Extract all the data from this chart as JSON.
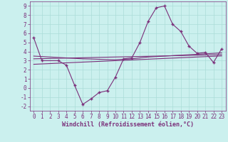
{
  "x_values": [
    0,
    1,
    2,
    3,
    4,
    5,
    6,
    7,
    8,
    9,
    10,
    11,
    12,
    13,
    14,
    15,
    16,
    17,
    18,
    19,
    20,
    21,
    22,
    23
  ],
  "main_line": [
    5.5,
    3.0,
    null,
    3.0,
    2.5,
    0.3,
    -1.8,
    -1.2,
    -0.5,
    -0.3,
    1.2,
    3.2,
    3.3,
    5.0,
    7.3,
    8.8,
    9.0,
    7.0,
    6.2,
    4.6,
    3.8,
    3.9,
    2.8,
    4.3
  ],
  "reg_lines": [
    [
      3.5,
      3.45,
      3.4,
      3.35,
      3.3,
      3.25,
      3.2,
      3.18,
      3.15,
      3.12,
      3.1,
      3.15,
      3.2,
      3.3,
      3.4,
      3.45,
      3.5,
      3.55,
      3.6,
      3.65,
      3.7,
      3.75,
      3.8,
      3.85
    ],
    [
      3.2,
      3.22,
      3.24,
      3.26,
      3.28,
      3.3,
      3.32,
      3.34,
      3.36,
      3.38,
      3.4,
      3.42,
      3.44,
      3.46,
      3.48,
      3.5,
      3.52,
      3.54,
      3.56,
      3.58,
      3.6,
      3.62,
      3.64,
      3.66
    ],
    [
      2.6,
      2.64,
      2.68,
      2.72,
      2.76,
      2.8,
      2.84,
      2.88,
      2.92,
      2.96,
      3.0,
      3.04,
      3.08,
      3.12,
      3.16,
      3.2,
      3.24,
      3.28,
      3.32,
      3.36,
      3.4,
      3.44,
      3.48,
      3.52
    ]
  ],
  "line_color": "#7B2F7A",
  "bg_color": "#CBF0EE",
  "grid_color": "#AADDD8",
  "xlabel": "Windchill (Refroidissement éolien,°C)",
  "xlim": [
    -0.5,
    23.5
  ],
  "ylim": [
    -2.5,
    9.5
  ],
  "yticks": [
    -2,
    -1,
    0,
    1,
    2,
    3,
    4,
    5,
    6,
    7,
    8,
    9
  ],
  "xticks": [
    0,
    1,
    2,
    3,
    4,
    5,
    6,
    7,
    8,
    9,
    10,
    11,
    12,
    13,
    14,
    15,
    16,
    17,
    18,
    19,
    20,
    21,
    22,
    23
  ]
}
